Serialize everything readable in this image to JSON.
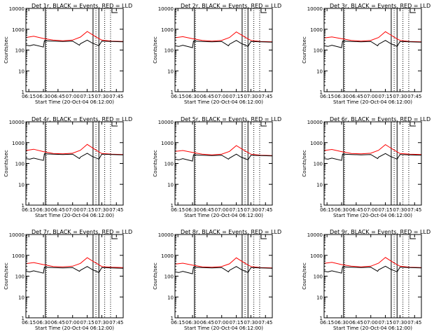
{
  "chart_data": [
    {
      "type": "line",
      "title": "Det 1r, BLACK = Events, RED = LLD",
      "xlabel": "Start Time (20-Oct-04 06:12:00)",
      "ylabel": "Counts/sec",
      "yscale": "log",
      "ylim": [
        1,
        10000
      ],
      "xlim": [
        "06:12",
        "07:52"
      ],
      "xticks": [
        "06:15",
        "06:30",
        "06:45",
        "07:00",
        "07:15",
        "07:30",
        "07:45"
      ],
      "yticks": [
        "1",
        "10",
        "100",
        "1000",
        "10000"
      ],
      "solid_markers": [
        "06:32",
        "07:21",
        "07:27"
      ],
      "dotted_markers": [
        "06:33",
        "07:24",
        "07:33",
        "07:39"
      ],
      "legend_mark": "box",
      "series": [
        {
          "color": "#ff0000",
          "x": [
            "06:12",
            "06:20",
            "06:30",
            "06:40",
            "06:50",
            "07:00",
            "07:08",
            "07:15",
            "07:20",
            "07:25",
            "07:30",
            "07:40",
            "07:52"
          ],
          "y": [
            400,
            460,
            360,
            300,
            280,
            300,
            420,
            780,
            560,
            400,
            300,
            270,
            260
          ]
        },
        {
          "color": "#000000",
          "x": [
            "06:12",
            "06:16",
            "06:20",
            "06:30",
            "06:31",
            "06:40",
            "06:50",
            "07:00",
            "07:07",
            "07:08",
            "07:15",
            "07:20",
            "07:27",
            "07:30",
            "07:40",
            "07:52"
          ],
          "y": [
            170,
            160,
            180,
            140,
            280,
            270,
            260,
            270,
            170,
            200,
            300,
            220,
            160,
            270,
            260,
            250
          ]
        }
      ]
    },
    {
      "type": "line",
      "title": "Det 2r, BLACK = Events, RED = LLD",
      "xlabel": "Start Time (20-Oct-04 06:12:00)",
      "ylabel": "Counts/sec",
      "yscale": "log",
      "ylim": [
        1,
        10000
      ],
      "xlim": [
        "06:12",
        "07:52"
      ],
      "xticks": [
        "06:15",
        "06:30",
        "06:45",
        "07:00",
        "07:15",
        "07:30",
        "07:45"
      ],
      "yticks": [
        "1",
        "10",
        "100",
        "1000",
        "10000"
      ],
      "solid_markers": [
        "06:32",
        "07:21",
        "07:27"
      ],
      "dotted_markers": [
        "06:33",
        "07:24",
        "07:33",
        "07:39"
      ],
      "legend_mark": "box",
      "series": [
        {
          "color": "#ff0000",
          "x": [
            "06:12",
            "06:20",
            "06:30",
            "06:40",
            "06:50",
            "07:00",
            "07:08",
            "07:15",
            "07:20",
            "07:25",
            "07:30",
            "07:40",
            "07:52"
          ],
          "y": [
            390,
            440,
            350,
            290,
            270,
            290,
            400,
            740,
            540,
            390,
            290,
            260,
            250
          ]
        },
        {
          "color": "#000000",
          "x": [
            "06:12",
            "06:16",
            "06:20",
            "06:30",
            "06:31",
            "06:40",
            "06:50",
            "07:00",
            "07:07",
            "07:08",
            "07:15",
            "07:20",
            "07:27",
            "07:30",
            "07:40",
            "07:52"
          ],
          "y": [
            160,
            150,
            170,
            130,
            270,
            260,
            250,
            260,
            160,
            190,
            290,
            210,
            150,
            260,
            250,
            240
          ]
        }
      ]
    },
    {
      "type": "line",
      "title": "Det 3r, BLACK = Events, RED = LLD",
      "xlabel": "Start Time (20-Oct-04 06:12:00)",
      "ylabel": "Counts/sec",
      "yscale": "log",
      "ylim": [
        1,
        10000
      ],
      "xlim": [
        "06:12",
        "07:52"
      ],
      "xticks": [
        "06:15",
        "06:30",
        "06:45",
        "07:00",
        "07:15",
        "07:30",
        "07:45"
      ],
      "yticks": [
        "1",
        "10",
        "100",
        "1000",
        "10000"
      ],
      "solid_markers": [
        "06:32",
        "07:21",
        "07:27"
      ],
      "dotted_markers": [
        "06:33",
        "07:24",
        "07:33",
        "07:39"
      ],
      "legend_mark": "box",
      "series": [
        {
          "color": "#ff0000",
          "x": [
            "06:12",
            "06:20",
            "06:30",
            "06:40",
            "06:50",
            "07:00",
            "07:08",
            "07:15",
            "07:20",
            "07:25",
            "07:30",
            "07:40",
            "07:52"
          ],
          "y": [
            380,
            430,
            350,
            290,
            270,
            290,
            400,
            760,
            550,
            390,
            290,
            260,
            250
          ]
        },
        {
          "color": "#000000",
          "x": [
            "06:12",
            "06:16",
            "06:20",
            "06:30",
            "06:31",
            "06:40",
            "06:50",
            "07:00",
            "07:07",
            "07:08",
            "07:15",
            "07:20",
            "07:27",
            "07:30",
            "07:40",
            "07:52"
          ],
          "y": [
            160,
            150,
            170,
            130,
            270,
            260,
            250,
            260,
            160,
            190,
            290,
            210,
            150,
            260,
            250,
            240
          ]
        }
      ]
    },
    {
      "type": "line",
      "title": "Det 4r, BLACK = Events, RED = LLD",
      "xlabel": "Start Time (20-Oct-04 06:12:00)",
      "ylabel": "Counts/sec",
      "yscale": "log",
      "ylim": [
        1,
        10000
      ],
      "xlim": [
        "06:12",
        "07:52"
      ],
      "xticks": [
        "06:15",
        "06:30",
        "06:45",
        "07:00",
        "07:15",
        "07:30",
        "07:45"
      ],
      "yticks": [
        "1",
        "10",
        "100",
        "1000",
        "10000"
      ],
      "solid_markers": [
        "06:32",
        "07:21",
        "07:27"
      ],
      "dotted_markers": [
        "06:33",
        "07:24",
        "07:33",
        "07:39"
      ],
      "legend_mark": "box",
      "series": [
        {
          "color": "#ff0000",
          "x": [
            "06:12",
            "06:20",
            "06:30",
            "06:40",
            "06:50",
            "07:00",
            "07:08",
            "07:15",
            "07:20",
            "07:25",
            "07:30",
            "07:40",
            "07:52"
          ],
          "y": [
            420,
            480,
            370,
            300,
            290,
            310,
            430,
            820,
            580,
            410,
            300,
            280,
            270
          ]
        },
        {
          "color": "#000000",
          "x": [
            "06:12",
            "06:16",
            "06:20",
            "06:30",
            "06:31",
            "06:40",
            "06:50",
            "07:00",
            "07:07",
            "07:08",
            "07:15",
            "07:20",
            "07:27",
            "07:30",
            "07:40",
            "07:52"
          ],
          "y": [
            170,
            160,
            180,
            140,
            290,
            280,
            270,
            280,
            170,
            200,
            310,
            220,
            160,
            280,
            270,
            260
          ]
        }
      ]
    },
    {
      "type": "line",
      "title": "Det 5r, BLACK = Events, RED = LLD",
      "xlabel": "Start Time (20-Oct-04 06:12:00)",
      "ylabel": "Counts/sec",
      "yscale": "log",
      "ylim": [
        1,
        10000
      ],
      "xlim": [
        "06:12",
        "07:52"
      ],
      "xticks": [
        "06:15",
        "06:30",
        "06:45",
        "07:00",
        "07:15",
        "07:30",
        "07:45"
      ],
      "yticks": [
        "1",
        "10",
        "100",
        "1000",
        "10000"
      ],
      "solid_markers": [
        "06:32",
        "07:21",
        "07:27"
      ],
      "dotted_markers": [
        "06:33",
        "07:24",
        "07:33",
        "07:39"
      ],
      "legend_mark": "box",
      "series": [
        {
          "color": "#ff0000",
          "x": [
            "06:12",
            "06:20",
            "06:30",
            "06:40",
            "06:50",
            "07:00",
            "07:08",
            "07:15",
            "07:20",
            "07:25",
            "07:30",
            "07:40",
            "07:52"
          ],
          "y": [
            380,
            420,
            340,
            280,
            260,
            280,
            380,
            720,
            520,
            380,
            280,
            250,
            240
          ]
        },
        {
          "color": "#000000",
          "x": [
            "06:12",
            "06:16",
            "06:20",
            "06:30",
            "06:31",
            "06:40",
            "06:50",
            "07:00",
            "07:07",
            "07:08",
            "07:15",
            "07:20",
            "07:27",
            "07:30",
            "07:40",
            "07:52"
          ],
          "y": [
            160,
            150,
            170,
            130,
            260,
            250,
            240,
            250,
            160,
            180,
            280,
            200,
            150,
            250,
            240,
            230
          ]
        }
      ]
    },
    {
      "type": "line",
      "title": "Det 6r, BLACK = Events, RED = LLD",
      "xlabel": "Start Time (20-Oct-04 06:12:00)",
      "ylabel": "Counts/sec",
      "yscale": "log",
      "ylim": [
        1,
        10000
      ],
      "xlim": [
        "06:12",
        "07:52"
      ],
      "xticks": [
        "06:15",
        "06:30",
        "06:45",
        "07:00",
        "07:15",
        "07:30",
        "07:45"
      ],
      "yticks": [
        "1",
        "10",
        "100",
        "1000",
        "10000"
      ],
      "solid_markers": [
        "06:32",
        "07:21",
        "07:27"
      ],
      "dotted_markers": [
        "06:33",
        "07:24",
        "07:33",
        "07:39"
      ],
      "legend_mark": "box",
      "series": [
        {
          "color": "#ff0000",
          "x": [
            "06:12",
            "06:20",
            "06:30",
            "06:40",
            "06:50",
            "07:00",
            "07:08",
            "07:15",
            "07:20",
            "07:25",
            "07:30",
            "07:40",
            "07:52"
          ],
          "y": [
            420,
            470,
            370,
            300,
            290,
            310,
            430,
            800,
            570,
            410,
            300,
            280,
            270
          ]
        },
        {
          "color": "#000000",
          "x": [
            "06:12",
            "06:16",
            "06:20",
            "06:30",
            "06:31",
            "06:40",
            "06:50",
            "07:00",
            "07:07",
            "07:08",
            "07:15",
            "07:20",
            "07:27",
            "07:30",
            "07:40",
            "07:52"
          ],
          "y": [
            170,
            160,
            180,
            140,
            280,
            270,
            260,
            270,
            170,
            200,
            300,
            220,
            160,
            270,
            260,
            250
          ]
        }
      ]
    },
    {
      "type": "line",
      "title": "Det 7r, BLACK = Events, RED = LLD",
      "xlabel": "Start Time (20-Oct-04 06:12:00)",
      "ylabel": "Counts/sec",
      "yscale": "log",
      "ylim": [
        1,
        10000
      ],
      "xlim": [
        "06:12",
        "07:52"
      ],
      "xticks": [
        "06:15",
        "06:30",
        "06:45",
        "07:00",
        "07:15",
        "07:30",
        "07:45"
      ],
      "yticks": [
        "1",
        "10",
        "100",
        "1000",
        "10000"
      ],
      "solid_markers": [
        "06:32",
        "07:21",
        "07:27"
      ],
      "dotted_markers": [
        "06:33",
        "07:24",
        "07:33",
        "07:39"
      ],
      "legend_mark": "box",
      "series": [
        {
          "color": "#ff0000",
          "x": [
            "06:12",
            "06:20",
            "06:30",
            "06:40",
            "06:50",
            "07:00",
            "07:08",
            "07:15",
            "07:20",
            "07:25",
            "07:30",
            "07:40",
            "07:52"
          ],
          "y": [
            400,
            450,
            360,
            290,
            280,
            300,
            410,
            770,
            550,
            400,
            290,
            270,
            260
          ]
        },
        {
          "color": "#000000",
          "x": [
            "06:12",
            "06:16",
            "06:20",
            "06:30",
            "06:31",
            "06:40",
            "06:50",
            "07:00",
            "07:07",
            "07:08",
            "07:15",
            "07:20",
            "07:27",
            "07:30",
            "07:40",
            "07:52"
          ],
          "y": [
            170,
            160,
            180,
            140,
            270,
            260,
            250,
            260,
            170,
            190,
            290,
            210,
            150,
            260,
            250,
            240
          ]
        }
      ]
    },
    {
      "type": "line",
      "title": "Det 8r, BLACK = Events, RED = LLD",
      "xlabel": "Start Time (20-Oct-04 06:12:00)",
      "ylabel": "Counts/sec",
      "yscale": "log",
      "ylim": [
        1,
        10000
      ],
      "xlim": [
        "06:12",
        "07:52"
      ],
      "xticks": [
        "06:15",
        "06:30",
        "06:45",
        "07:00",
        "07:15",
        "07:30",
        "07:45"
      ],
      "yticks": [
        "1",
        "10",
        "100",
        "1000",
        "10000"
      ],
      "solid_markers": [
        "06:32",
        "07:21",
        "07:27"
      ],
      "dotted_markers": [
        "06:33",
        "07:24",
        "07:33",
        "07:39"
      ],
      "legend_mark": "box",
      "series": [
        {
          "color": "#ff0000",
          "x": [
            "06:12",
            "06:20",
            "06:30",
            "06:40",
            "06:50",
            "07:00",
            "07:08",
            "07:15",
            "07:20",
            "07:25",
            "07:30",
            "07:40",
            "07:52"
          ],
          "y": [
            380,
            420,
            340,
            280,
            270,
            290,
            390,
            760,
            540,
            390,
            290,
            260,
            250
          ]
        },
        {
          "color": "#000000",
          "x": [
            "06:12",
            "06:16",
            "06:20",
            "06:30",
            "06:31",
            "06:40",
            "06:50",
            "07:00",
            "07:07",
            "07:08",
            "07:15",
            "07:20",
            "07:27",
            "07:30",
            "07:40",
            "07:52"
          ],
          "y": [
            160,
            150,
            170,
            130,
            270,
            260,
            250,
            260,
            160,
            190,
            290,
            210,
            150,
            260,
            250,
            240
          ]
        }
      ]
    },
    {
      "type": "line",
      "title": "Det 9r, BLACK = Events, RED = LLD",
      "xlabel": "Start Time (20-Oct-04 06:12:00)",
      "ylabel": "Counts/sec",
      "yscale": "log",
      "ylim": [
        1,
        10000
      ],
      "xlim": [
        "06:12",
        "07:52"
      ],
      "xticks": [
        "06:15",
        "06:30",
        "06:45",
        "07:00",
        "07:15",
        "07:30",
        "07:45"
      ],
      "yticks": [
        "1",
        "10",
        "100",
        "1000",
        "10000"
      ],
      "solid_markers": [
        "06:32",
        "07:21",
        "07:27"
      ],
      "dotted_markers": [
        "06:33",
        "07:24",
        "07:33",
        "07:39"
      ],
      "legend_mark": "box",
      "series": [
        {
          "color": "#ff0000",
          "x": [
            "06:12",
            "06:20",
            "06:30",
            "06:40",
            "06:50",
            "07:00",
            "07:08",
            "07:15",
            "07:20",
            "07:25",
            "07:30",
            "07:40",
            "07:52"
          ],
          "y": [
            410,
            460,
            360,
            300,
            280,
            300,
            420,
            790,
            560,
            400,
            300,
            270,
            260
          ]
        },
        {
          "color": "#000000",
          "x": [
            "06:12",
            "06:16",
            "06:20",
            "06:30",
            "06:31",
            "06:40",
            "06:50",
            "07:00",
            "07:07",
            "07:08",
            "07:15",
            "07:20",
            "07:27",
            "07:30",
            "07:40",
            "07:52"
          ],
          "y": [
            170,
            160,
            180,
            140,
            280,
            270,
            260,
            270,
            170,
            200,
            300,
            220,
            160,
            270,
            260,
            250
          ]
        }
      ]
    }
  ]
}
